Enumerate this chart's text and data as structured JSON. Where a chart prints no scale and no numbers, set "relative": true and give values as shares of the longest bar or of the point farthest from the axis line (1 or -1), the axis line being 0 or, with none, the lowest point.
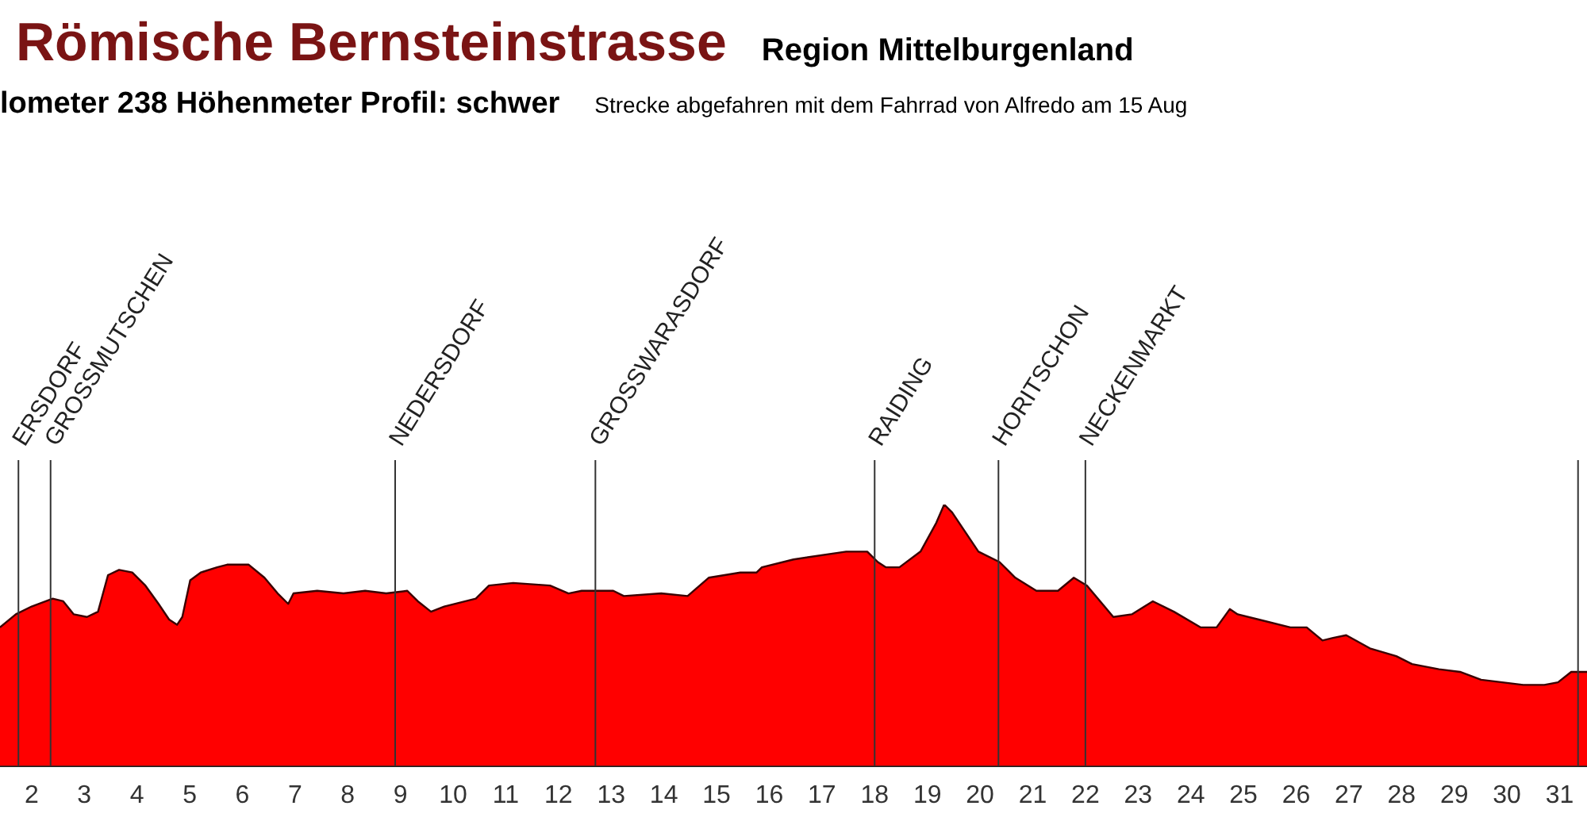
{
  "chart_data": {
    "type": "area",
    "title": "Römische Bernsteinstrasse",
    "subtitle": "Region Mittelburgenland",
    "annotations": [
      "lometer  238 Höhenmeter  Profil: schwer",
      "Strecke abgefahren mit dem Fahrrad von Alfredo am 15 Aug"
    ],
    "relative": true,
    "color": "#ff0000",
    "x": [
      1.4,
      1.7,
      2.0,
      2.4,
      2.6,
      2.8,
      3.05,
      3.26,
      3.45,
      3.66,
      3.91,
      4.16,
      4.41,
      4.61,
      4.76,
      4.86,
      5.01,
      5.21,
      5.52,
      5.71,
      6.12,
      6.42,
      6.67,
      6.87,
      6.97,
      7.42,
      7.92,
      8.33,
      8.73,
      9.13,
      9.33,
      9.58,
      9.83,
      10.43,
      10.68,
      11.14,
      11.84,
      12.19,
      12.44,
      13.04,
      13.24,
      13.95,
      14.45,
      14.85,
      15.45,
      15.76,
      15.86,
      16.46,
      17.46,
      17.86,
      18.06,
      18.21,
      18.47,
      18.87,
      19.17,
      19.32,
      19.47,
      19.97,
      20.37,
      20.67,
      21.07,
      21.48,
      21.78,
      22.03,
      22.53,
      22.88,
      23.28,
      23.68,
      24.19,
      24.49,
      24.74,
      24.89,
      25.29,
      25.89,
      26.2,
      26.5,
      26.7,
      26.95,
      27.4,
      27.9,
      28.2,
      28.71,
      29.11,
      29.51,
      30.31,
      30.71,
      30.97,
      31.22,
      31.52
    ],
    "values": [
      0.53,
      0.58,
      0.61,
      0.64,
      0.63,
      0.58,
      0.57,
      0.59,
      0.73,
      0.75,
      0.74,
      0.69,
      0.62,
      0.56,
      0.54,
      0.57,
      0.71,
      0.74,
      0.76,
      0.77,
      0.77,
      0.72,
      0.66,
      0.62,
      0.66,
      0.67,
      0.66,
      0.67,
      0.66,
      0.67,
      0.63,
      0.59,
      0.61,
      0.64,
      0.69,
      0.7,
      0.69,
      0.66,
      0.67,
      0.67,
      0.65,
      0.66,
      0.65,
      0.72,
      0.74,
      0.74,
      0.76,
      0.79,
      0.82,
      0.82,
      0.78,
      0.76,
      0.76,
      0.82,
      0.93,
      1.0,
      0.97,
      0.82,
      0.78,
      0.72,
      0.67,
      0.67,
      0.72,
      0.69,
      0.57,
      0.58,
      0.63,
      0.59,
      0.53,
      0.53,
      0.6,
      0.58,
      0.56,
      0.53,
      0.53,
      0.48,
      0.49,
      0.5,
      0.45,
      0.42,
      0.39,
      0.37,
      0.36,
      0.33,
      0.31,
      0.31,
      0.32,
      0.36,
      0.36
    ],
    "xlim": [
      1.4,
      31.52
    ],
    "xticks": [
      2,
      3,
      4,
      5,
      6,
      7,
      8,
      9,
      10,
      11,
      12,
      13,
      14,
      15,
      16,
      17,
      18,
      19,
      20,
      21,
      22,
      23,
      24,
      25,
      26,
      27,
      28,
      29,
      30,
      31
    ],
    "grid": false,
    "legend": false,
    "ref_lines": [
      {
        "axis": "x",
        "value": 1.75,
        "label": "ERSDORF"
      },
      {
        "axis": "x",
        "value": 2.36,
        "label": "GROSSMUTSCHEN"
      },
      {
        "axis": "x",
        "value": 8.9,
        "label": "NEDERSDORF"
      },
      {
        "axis": "x",
        "value": 12.7,
        "label": "GROSSWARASDORF"
      },
      {
        "axis": "x",
        "value": 18.0,
        "label": "RAIDING"
      },
      {
        "axis": "x",
        "value": 20.35,
        "label": "HORITSCHON"
      },
      {
        "axis": "x",
        "value": 22.0,
        "label": "NECKENMARKT"
      },
      {
        "axis": "x",
        "value": 31.35,
        "label": null
      }
    ]
  }
}
